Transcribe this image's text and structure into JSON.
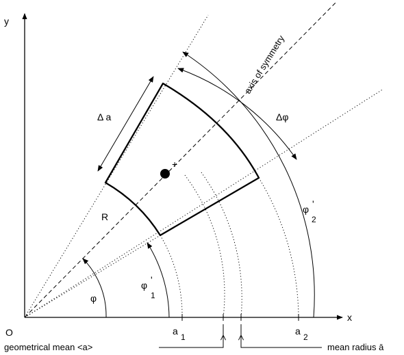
{
  "axes": {
    "x_label": "x",
    "y_label": "y",
    "origin_label": "O"
  },
  "labels": {
    "axis_of_symmetry": "axis of symmetry",
    "delta_a": "Δ a",
    "delta_phi": "Δφ",
    "radius": "R",
    "phi": "φ",
    "phi1_main": "φ",
    "phi1_prime": "'",
    "phi1_sub": "1",
    "phi2_main": "φ",
    "phi2_prime": "'",
    "phi2_sub": "2",
    "a1_main": "a",
    "a1_sub": "1",
    "a2_main": "a",
    "a2_sub": "2",
    "geometrical_mean": "geometrical mean  <a>",
    "mean_radius": "mean radius ā",
    "plus_marker": "+"
  }
}
